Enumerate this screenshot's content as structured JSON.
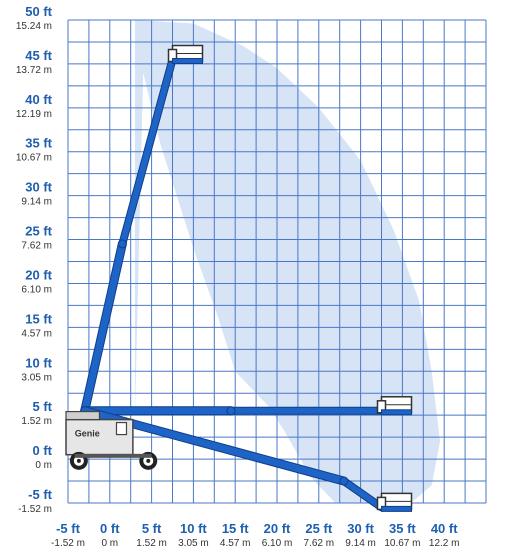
{
  "colors": {
    "ft_label": "#1f5fb0",
    "m_label": "#333333",
    "grid": "#4a78c8",
    "envelope": "#d6e4f5",
    "boom": "#1e63c6",
    "boom_edge": "#0f3f8a",
    "basket": "#ffffff",
    "basket_stroke": "#333333"
  },
  "y_labels": [
    {
      "value": 50,
      "ft": "50 ft",
      "m": "15.24 m"
    },
    {
      "value": 45,
      "ft": "45 ft",
      "m": "13.72 m"
    },
    {
      "value": 40,
      "ft": "40 ft",
      "m": "12.19 m"
    },
    {
      "value": 35,
      "ft": "35 ft",
      "m": "10.67 m"
    },
    {
      "value": 30,
      "ft": "30 ft",
      "m": "9.14 m"
    },
    {
      "value": 25,
      "ft": "25 ft",
      "m": "7.62 m"
    },
    {
      "value": 20,
      "ft": "20 ft",
      "m": "6.10 m"
    },
    {
      "value": 15,
      "ft": "15 ft",
      "m": "4.57 m"
    },
    {
      "value": 10,
      "ft": "10 ft",
      "m": "3.05 m"
    },
    {
      "value": 5,
      "ft": "5 ft",
      "m": "1.52 m"
    },
    {
      "value": 0,
      "ft": "0 ft",
      "m": "0 m"
    },
    {
      "value": -5,
      "ft": "-5 ft",
      "m": "-1.52 m"
    }
  ],
  "x_labels": [
    {
      "value": -5,
      "ft": "-5 ft",
      "m": "-1.52 m"
    },
    {
      "value": 0,
      "ft": "0 ft",
      "m": "0 m"
    },
    {
      "value": 5,
      "ft": "5 ft",
      "m": "1.52 m"
    },
    {
      "value": 10,
      "ft": "10 ft",
      "m": "3.05 m"
    },
    {
      "value": 15,
      "ft": "15 ft",
      "m": "4.57 m"
    },
    {
      "value": 20,
      "ft": "20 ft",
      "m": "6.10 m"
    },
    {
      "value": 25,
      "ft": "25 ft",
      "m": "7.62 m"
    },
    {
      "value": 30,
      "ft": "30 ft",
      "m": "9.14 m"
    },
    {
      "value": 35,
      "ft": "35 ft",
      "m": "10.67 m"
    },
    {
      "value": 40,
      "ft": "40 ft",
      "m": "12.2 m"
    }
  ],
  "grid": {
    "x_range": [
      -5,
      45
    ],
    "y_range": [
      -5,
      50
    ],
    "x_step_ft": 2.5,
    "y_step_ft": 2.5
  },
  "envelope_ft": [
    [
      3,
      4.8
    ],
    [
      3,
      50
    ],
    [
      10,
      49.6
    ],
    [
      16,
      47
    ],
    [
      20,
      44.5
    ],
    [
      25,
      40
    ],
    [
      30,
      34
    ],
    [
      34,
      26
    ],
    [
      37,
      18
    ],
    [
      38.5,
      10
    ],
    [
      39.5,
      2
    ],
    [
      38.5,
      -3
    ],
    [
      36,
      -5
    ],
    [
      27,
      -5
    ],
    [
      24,
      -2
    ],
    [
      21,
      3
    ],
    [
      19,
      6
    ],
    [
      15,
      10
    ],
    [
      13,
      16
    ],
    [
      10,
      24
    ],
    [
      8,
      30
    ],
    [
      6,
      36
    ],
    [
      5,
      40
    ],
    [
      4,
      44
    ]
  ],
  "machine": {
    "brand": "Genie",
    "pivot_ft": [
      -3,
      5.5
    ],
    "boom_positions": [
      {
        "name": "elevated",
        "elbow_ft": [
          1.5,
          24.5
        ],
        "tip_ft": [
          7.5,
          45.5
        ]
      },
      {
        "name": "horizontal",
        "elbow_ft": [
          14.5,
          5.5
        ],
        "tip_ft": [
          32.5,
          5.5
        ]
      },
      {
        "name": "below-grade",
        "elbow_ft": [
          28,
          -2.5
        ],
        "tip_ft": [
          32.5,
          -5.5
        ]
      }
    ]
  }
}
